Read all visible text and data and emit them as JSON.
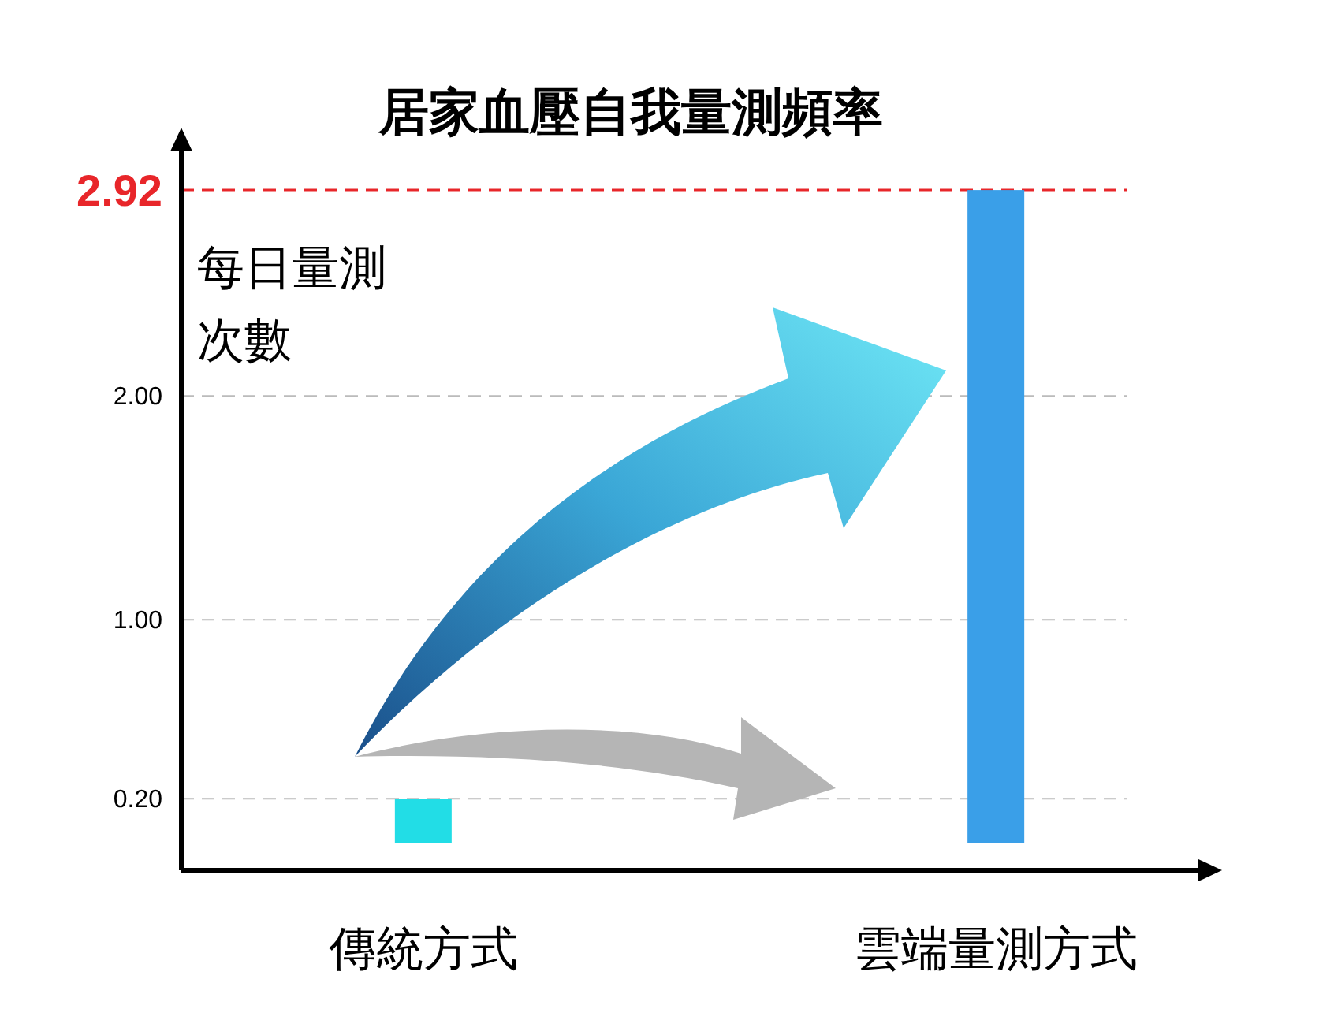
{
  "chart_data": {
    "type": "bar",
    "title": "居家血壓自我量測頻率",
    "ylabel": "每日量測次數",
    "categories": [
      "傳統方式",
      "雲端量測方式"
    ],
    "values": [
      0.2,
      2.92
    ],
    "colors": [
      "#22dde6",
      "#3a9fe8"
    ],
    "ylim": [
      0,
      3.1
    ],
    "yticks": [
      {
        "value": 0.2,
        "label": "0.20"
      },
      {
        "value": 1,
        "label": "1.00"
      },
      {
        "value": 2,
        "label": "2.00"
      }
    ],
    "ref_lines": [
      {
        "axis": "y",
        "value": 2.92,
        "label": "2.92",
        "color": "#e8262a",
        "line_style": "dashed"
      }
    ],
    "grid": "y"
  }
}
